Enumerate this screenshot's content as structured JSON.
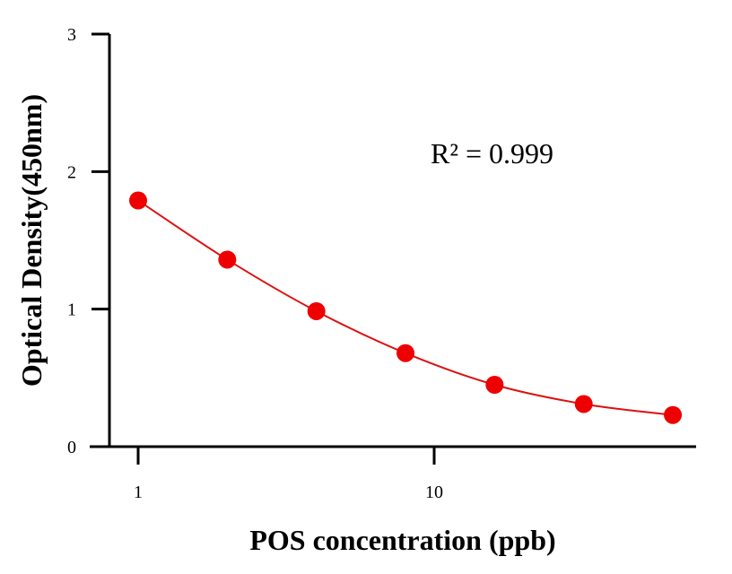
{
  "chart_data": {
    "type": "scatter",
    "xlabel": "POS concentration (ppb)",
    "ylabel": "Optical Density(450nm)",
    "x_scale": "log",
    "xlim": [
      0.8,
      80
    ],
    "ylim": [
      0,
      3
    ],
    "x_ticks": [
      1,
      10
    ],
    "x_tick_labels": [
      "1",
      "10"
    ],
    "y_ticks": [
      0,
      1,
      2,
      3
    ],
    "y_tick_labels": [
      "0",
      "1",
      "2",
      "3"
    ],
    "annotation": "R² = 0.999",
    "grid": false,
    "colors": {
      "points": "#ee0000",
      "curve": "#dd1111",
      "axes": "#000000"
    },
    "series": [
      {
        "x": [
          1,
          2,
          4,
          8,
          16,
          32,
          64
        ],
        "y": [
          1.79,
          1.36,
          0.985,
          0.68,
          0.45,
          0.31,
          0.23
        ],
        "fit_curve": true
      }
    ]
  }
}
